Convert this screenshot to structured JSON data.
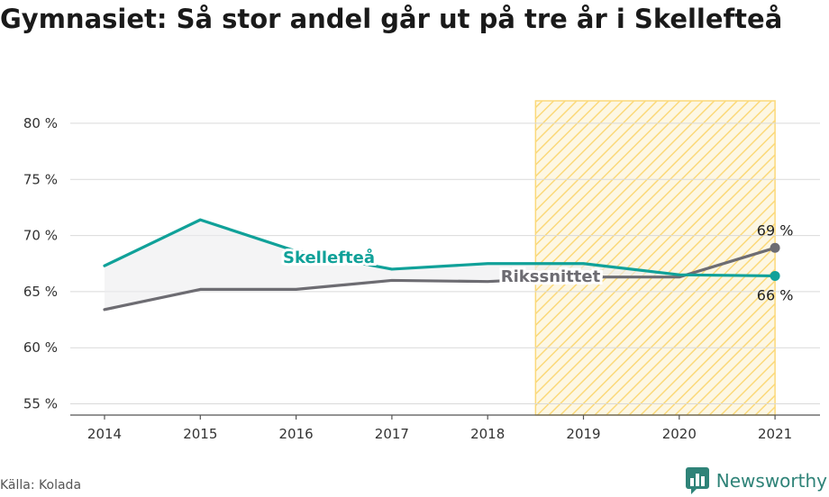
{
  "title": "Gymnasiet: Så stor andel går ut på tre år i Skellefteå",
  "source": "Källa: Kolada",
  "brand": {
    "name": "Newsworthy",
    "logo_icon": "newsworthy-logo-icon",
    "color": "#2f8378"
  },
  "chart_data": {
    "type": "line",
    "x": [
      "2014",
      "2015",
      "2016",
      "2017",
      "2018",
      "2019",
      "2020",
      "2021"
    ],
    "series": [
      {
        "name": "Skellefteå",
        "color": "#10a199",
        "values": [
          67.3,
          71.4,
          68.6,
          67.0,
          67.5,
          67.5,
          66.5,
          66.4
        ]
      },
      {
        "name": "Rikssnittet",
        "color": "#6d6c72",
        "values": [
          63.4,
          65.2,
          65.2,
          66.0,
          65.9,
          66.3,
          66.3,
          68.9
        ]
      }
    ],
    "ylim": [
      54,
      82
    ],
    "yticks": [
      55,
      60,
      65,
      70,
      75,
      80
    ],
    "ytick_labels": [
      "55 %",
      "60 %",
      "65 %",
      "70 %",
      "75 %",
      "80 %"
    ],
    "end_labels": [
      "66 %",
      "69 %"
    ],
    "highlight": {
      "from": 2018.5,
      "to": 2021,
      "fill": "#fbd97a"
    },
    "grid": true
  }
}
